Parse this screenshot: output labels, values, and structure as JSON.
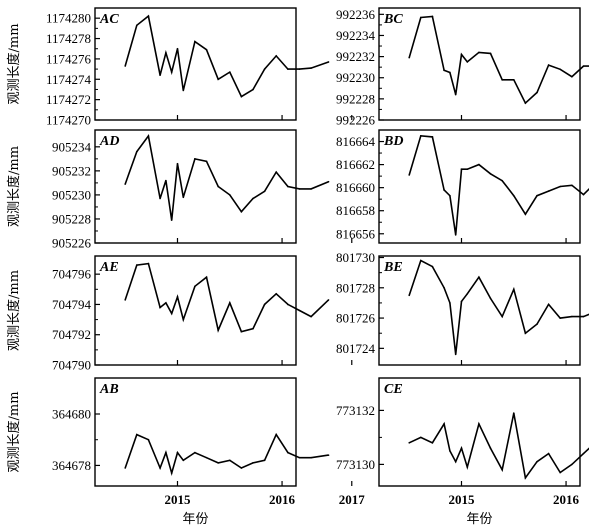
{
  "y_axis_title": "观测长度/mm",
  "x_axis_title": "年份",
  "x_ticks": [
    "2015",
    "2016",
    "2017"
  ],
  "chart_data": [
    {
      "type": "line",
      "title": "AC",
      "xlabel": "年份",
      "ylabel": "观测长度/mm",
      "ylim": [
        1174270,
        1174280
      ],
      "yticks": [
        1174270,
        1174272,
        1174274,
        1174276,
        1174278,
        1174280
      ],
      "x": [
        "2014-10",
        "2014-12",
        "2015-02",
        "2015-04",
        "2015-05",
        "2015-06",
        "2015-07",
        "2015-08",
        "2015-10",
        "2015-12",
        "2016-02",
        "2016-04",
        "2016-06",
        "2016-08",
        "2016-10",
        "2016-12",
        "2017-02",
        "2017-04",
        "2017-06",
        "2017-09"
      ],
      "values": [
        1174275.3,
        1174279.3,
        1174280.2,
        1174274.4,
        1174276.6,
        1174274.7,
        1174277.0,
        1174272.9,
        1174277.7,
        1174276.9,
        1174274.0,
        1174274.7,
        1174272.3,
        1174273.0,
        1174275.0,
        1174276.3,
        1174275.0,
        1174275.0,
        1174275.1,
        1174275.7
      ]
    },
    {
      "type": "line",
      "title": "BC",
      "ylim": [
        992226,
        992236
      ],
      "yticks": [
        992226,
        992228,
        992230,
        992232,
        992234,
        992236
      ],
      "x": [
        "2014-10",
        "2014-12",
        "2015-02",
        "2015-04",
        "2015-05",
        "2015-06",
        "2015-07",
        "2015-08",
        "2015-10",
        "2015-12",
        "2016-02",
        "2016-04",
        "2016-06",
        "2016-08",
        "2016-10",
        "2016-12",
        "2017-02",
        "2017-04",
        "2017-06",
        "2017-09"
      ],
      "values": [
        992231.9,
        992235.7,
        992235.8,
        992230.7,
        992230.5,
        992228.4,
        992232.2,
        992231.5,
        992232.4,
        992232.3,
        992229.8,
        992229.8,
        992227.6,
        992228.6,
        992231.2,
        992230.8,
        992230.1,
        992231.1,
        992231.1,
        992231.0
      ]
    },
    {
      "type": "line",
      "title": "AD",
      "ylim": [
        905226,
        905235
      ],
      "yticks": [
        905226,
        905228,
        905230,
        905232,
        905234
      ],
      "x": [
        "2014-10",
        "2014-12",
        "2015-02",
        "2015-04",
        "2015-05",
        "2015-06",
        "2015-07",
        "2015-08",
        "2015-10",
        "2015-12",
        "2016-02",
        "2016-04",
        "2016-06",
        "2016-08",
        "2016-10",
        "2016-12",
        "2017-02",
        "2017-04",
        "2017-06",
        "2017-09"
      ],
      "values": [
        905230.9,
        905233.6,
        905234.9,
        905229.7,
        905231.2,
        905227.9,
        905232.6,
        905229.8,
        905233.0,
        905232.8,
        905230.7,
        905230.0,
        905228.6,
        905229.7,
        905230.3,
        905231.9,
        905230.7,
        905230.5,
        905230.5,
        905231.1
      ]
    },
    {
      "type": "line",
      "title": "BD",
      "ylim": [
        816655,
        816665
      ],
      "yticks": [
        816656,
        816658,
        816660,
        816662,
        816664
      ],
      "x": [
        "2014-10",
        "2014-12",
        "2015-02",
        "2015-04",
        "2015-05",
        "2015-06",
        "2015-07",
        "2015-08",
        "2015-10",
        "2015-12",
        "2016-02",
        "2016-04",
        "2016-06",
        "2016-08",
        "2016-10",
        "2016-12",
        "2017-02",
        "2017-04",
        "2017-06",
        "2017-09"
      ],
      "values": [
        816661.1,
        816664.5,
        816664.4,
        816659.8,
        816659.3,
        816655.9,
        816661.6,
        816661.6,
        816662.0,
        816661.2,
        816660.6,
        816659.3,
        816657.7,
        816659.3,
        816659.7,
        816660.1,
        816660.2,
        816659.4,
        816660.4,
        816660.3
      ]
    },
    {
      "type": "line",
      "title": "AE",
      "ylim": [
        704790,
        704797
      ],
      "yticks": [
        704790,
        704792,
        704794,
        704796
      ],
      "x": [
        "2014-10",
        "2014-12",
        "2015-02",
        "2015-04",
        "2015-05",
        "2015-06",
        "2015-07",
        "2015-08",
        "2015-10",
        "2015-12",
        "2016-02",
        "2016-04",
        "2016-06",
        "2016-08",
        "2016-10",
        "2016-12",
        "2017-02",
        "2017-04",
        "2017-06",
        "2017-09"
      ],
      "values": [
        704794.3,
        704796.6,
        704796.7,
        704793.8,
        704794.1,
        704793.4,
        704794.5,
        704793.0,
        704795.2,
        704795.8,
        704792.3,
        704794.1,
        704792.2,
        704792.4,
        704794.0,
        704794.7,
        704794.0,
        704793.6,
        704793.2,
        704794.3
      ]
    },
    {
      "type": "line",
      "title": "BE",
      "ylim": [
        801723,
        801730
      ],
      "yticks": [
        801724,
        801726,
        801728,
        801730
      ],
      "x": [
        "2014-10",
        "2014-12",
        "2015-02",
        "2015-04",
        "2015-05",
        "2015-06",
        "2015-07",
        "2015-08",
        "2015-10",
        "2015-12",
        "2016-02",
        "2016-04",
        "2016-06",
        "2016-08",
        "2016-10",
        "2016-12",
        "2017-02",
        "2017-04",
        "2017-06",
        "2017-09"
      ],
      "values": [
        801727.5,
        801729.8,
        801729.4,
        801728.0,
        801727.0,
        801723.6,
        801727.1,
        801727.6,
        801728.7,
        801727.3,
        801726.1,
        801727.9,
        801725.0,
        801725.6,
        801726.9,
        801726.0,
        801726.1,
        801726.1,
        801726.4,
        801727.3
      ]
    },
    {
      "type": "line",
      "title": "AB",
      "ylim": [
        364677.3,
        364681
      ],
      "yticks": [
        364678,
        364680
      ],
      "x": [
        "2014-10",
        "2014-12",
        "2015-02",
        "2015-04",
        "2015-05",
        "2015-06",
        "2015-07",
        "2015-08",
        "2015-10",
        "2015-12",
        "2016-02",
        "2016-04",
        "2016-06",
        "2016-08",
        "2016-10",
        "2016-12",
        "2017-02",
        "2017-04",
        "2017-06",
        "2017-09"
      ],
      "values": [
        364677.9,
        364679.2,
        364679.0,
        364677.9,
        364678.5,
        364677.7,
        364678.5,
        364678.2,
        364678.5,
        364678.3,
        364678.1,
        364678.2,
        364677.9,
        364678.1,
        364678.2,
        364679.2,
        364678.5,
        364678.3,
        364678.3,
        364678.4
      ]
    },
    {
      "type": "line",
      "title": "CE",
      "ylim": [
        773129.2,
        773133.1
      ],
      "yticks": [
        773130,
        773132
      ],
      "x": [
        "2014-10",
        "2014-12",
        "2015-02",
        "2015-04",
        "2015-05",
        "2015-06",
        "2015-07",
        "2015-08",
        "2015-10",
        "2015-12",
        "2016-02",
        "2016-04",
        "2016-06",
        "2016-08",
        "2016-10",
        "2016-12",
        "2017-02",
        "2017-04",
        "2017-06",
        "2017-09"
      ],
      "values": [
        773130.8,
        773131.0,
        773130.8,
        773131.5,
        773130.5,
        773130.1,
        773130.6,
        773129.9,
        773131.5,
        773130.6,
        773129.8,
        773131.9,
        773129.5,
        773130.1,
        773130.4,
        773129.7,
        773130.0,
        773130.4,
        773130.8,
        773131.6
      ]
    }
  ]
}
